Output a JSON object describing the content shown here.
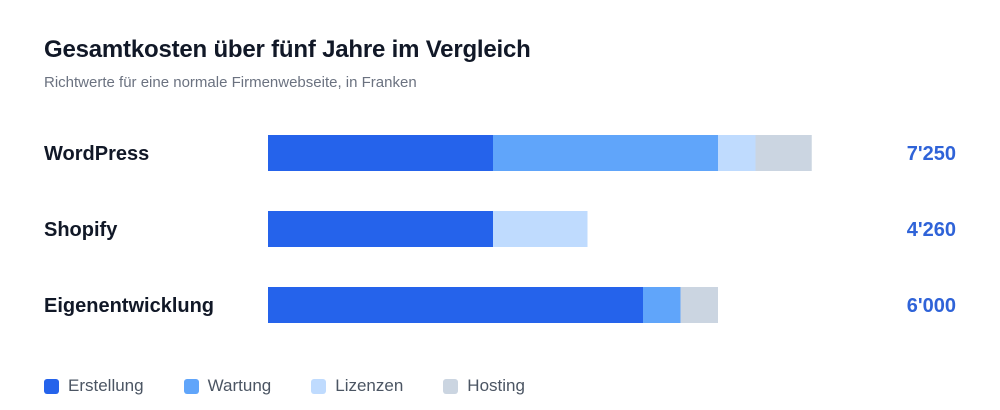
{
  "chart_data": {
    "type": "bar",
    "orientation": "horizontal",
    "stacked": true,
    "title": "Gesamtkosten über fünf Jahre im Vergleich",
    "subtitle": "Richtwerte für eine normale Firmenwebseite, in Franken",
    "categories": [
      "WordPress",
      "Shopify",
      "Eigenentwicklung"
    ],
    "series": [
      {
        "name": "Erstellung",
        "color": "#2563eb",
        "values": [
          3000,
          3000,
          5000
        ]
      },
      {
        "name": "Wartung",
        "color": "#60a5fa",
        "values": [
          3000,
          0,
          500
        ]
      },
      {
        "name": "Lizenzen",
        "color": "#bfdbfe",
        "values": [
          500,
          1260,
          0
        ]
      },
      {
        "name": "Hosting",
        "color": "#cbd5e1",
        "values": [
          750,
          0,
          500
        ]
      }
    ],
    "totals": [
      "7'250",
      "4'260",
      "6'000"
    ],
    "xlim": [
      0,
      10000
    ],
    "grid": false,
    "legend_position": "bottom-left"
  }
}
